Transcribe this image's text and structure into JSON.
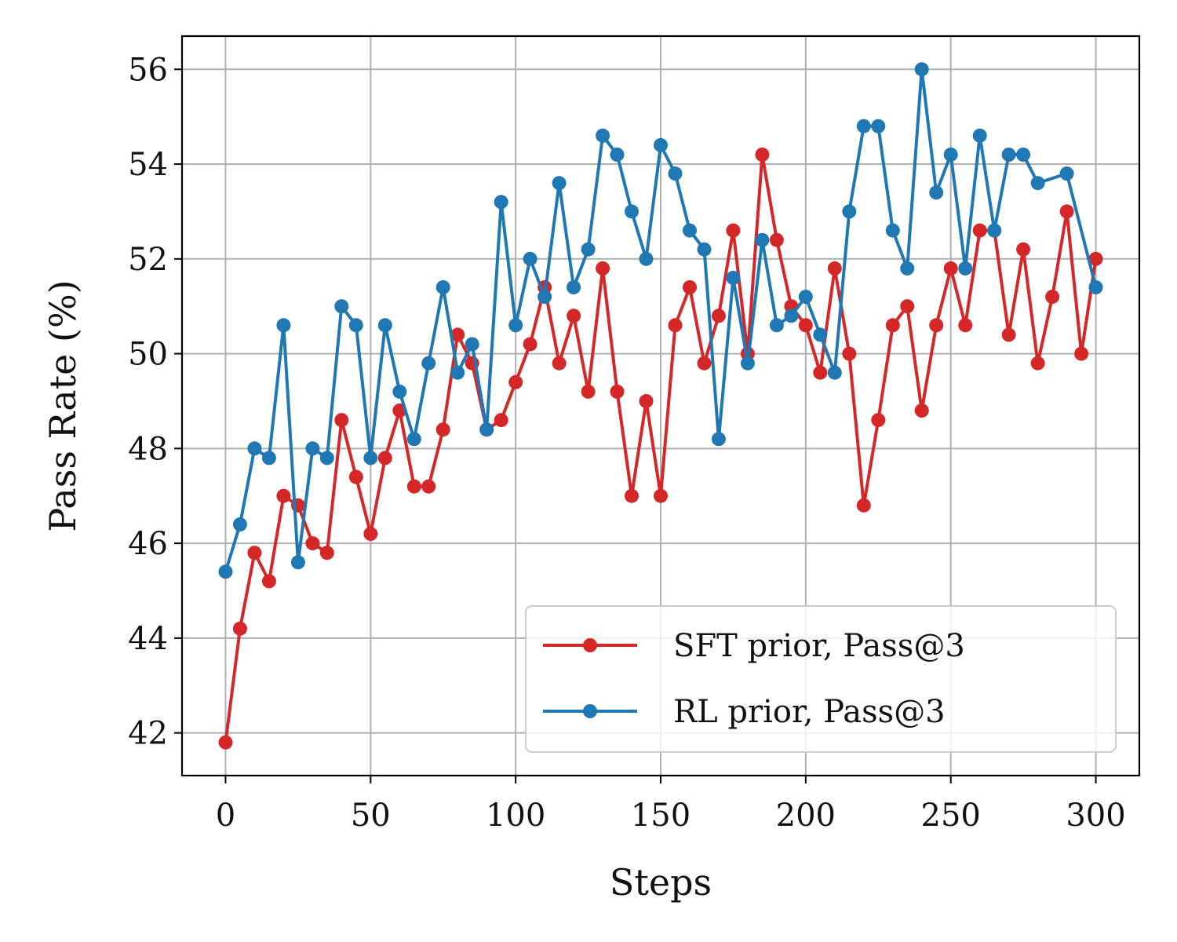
{
  "chart_data": {
    "type": "line",
    "title": "",
    "xlabel": "Steps",
    "ylabel": "Pass Rate (%)",
    "xlim": [
      -15,
      315
    ],
    "ylim": [
      41.1,
      56.7
    ],
    "xticks": [
      0,
      50,
      100,
      150,
      200,
      250,
      300
    ],
    "yticks": [
      42,
      44,
      46,
      48,
      50,
      52,
      54,
      56
    ],
    "grid": true,
    "legend_position": "lower-right",
    "x": [
      0,
      5,
      10,
      15,
      20,
      25,
      30,
      35,
      40,
      45,
      50,
      55,
      60,
      65,
      70,
      75,
      80,
      85,
      90,
      95,
      100,
      105,
      110,
      115,
      120,
      125,
      130,
      135,
      140,
      145,
      150,
      155,
      160,
      165,
      170,
      175,
      180,
      185,
      190,
      195,
      200,
      205,
      210,
      215,
      220,
      225,
      230,
      235,
      240,
      245,
      250,
      255,
      260,
      265,
      270,
      275,
      280,
      285,
      290,
      295,
      300
    ],
    "series": [
      {
        "name": "SFT prior, Pass@3",
        "color": "#d62728",
        "values": [
          41.8,
          44.2,
          45.8,
          45.2,
          47.0,
          46.8,
          46.0,
          45.8,
          48.6,
          47.4,
          46.2,
          47.8,
          48.8,
          47.2,
          47.2,
          48.4,
          50.4,
          49.8,
          48.4,
          48.6,
          49.4,
          50.2,
          51.4,
          49.8,
          50.8,
          49.2,
          51.8,
          49.2,
          47.0,
          49.0,
          47.0,
          50.6,
          51.4,
          49.8,
          50.8,
          52.6,
          50.0,
          54.2,
          52.4,
          51.0,
          50.6,
          49.6,
          51.8,
          50.0,
          46.8,
          48.6,
          50.6,
          51.0,
          48.8,
          50.6,
          51.8,
          50.6,
          52.6,
          52.6,
          50.4,
          52.2,
          49.8,
          51.2,
          53.0,
          50.0,
          52.0
        ]
      },
      {
        "name": "RL prior, Pass@3",
        "color": "#1f77b4",
        "values": [
          45.4,
          46.4,
          48.0,
          47.8,
          50.6,
          45.6,
          48.0,
          47.8,
          51.0,
          50.6,
          47.8,
          50.6,
          49.2,
          48.2,
          49.8,
          51.4,
          49.6,
          50.2,
          48.4,
          53.2,
          50.6,
          52.0,
          51.2,
          53.6,
          51.4,
          52.2,
          54.6,
          54.2,
          53.0,
          52.0,
          54.4,
          53.8,
          52.6,
          52.2,
          48.2,
          51.6,
          49.8,
          52.4,
          50.6,
          50.8,
          51.2,
          50.4,
          49.6,
          53.0,
          54.8,
          54.8,
          52.6,
          51.8,
          56.0,
          53.4,
          54.2,
          51.8,
          54.6,
          52.6,
          54.2,
          54.2,
          53.6,
          null,
          53.8,
          null,
          51.4
        ]
      }
    ]
  }
}
